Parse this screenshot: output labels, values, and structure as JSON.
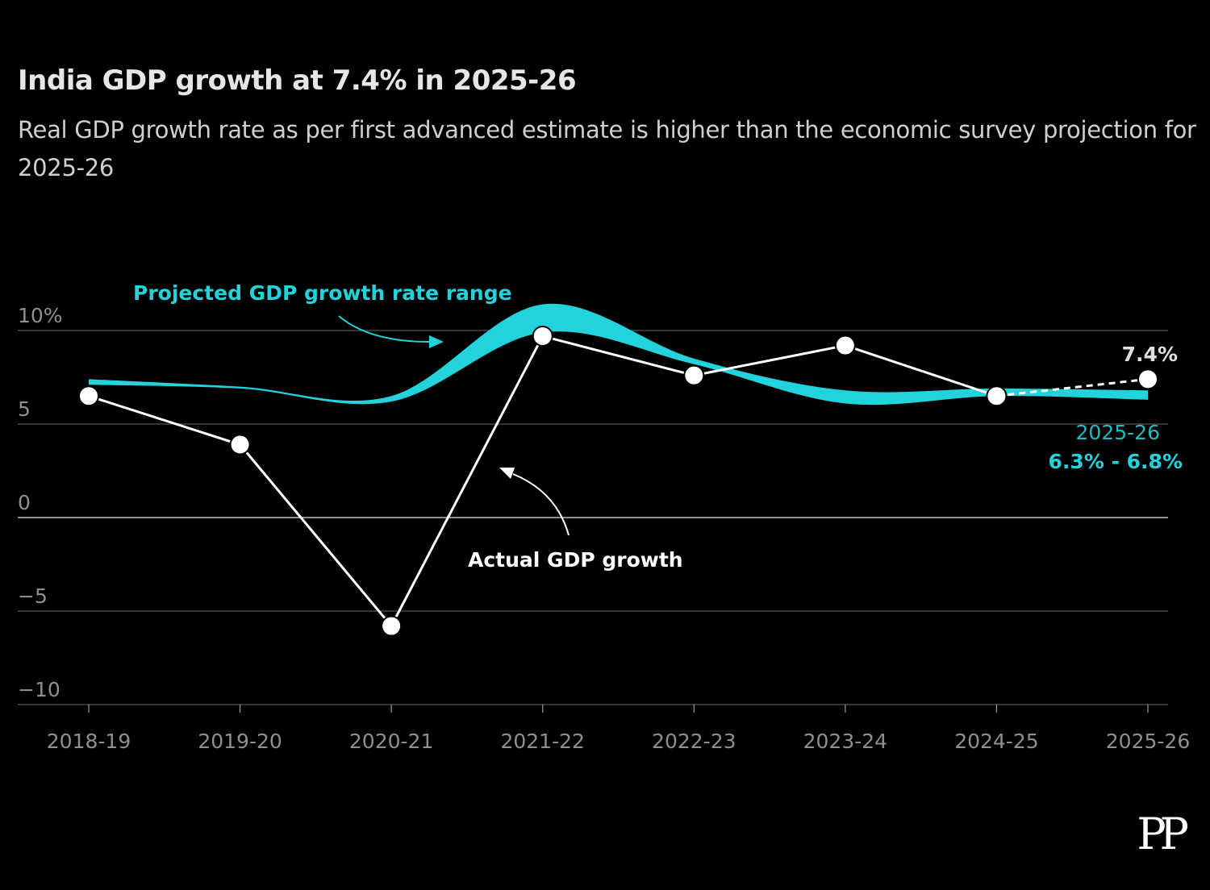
{
  "title": "India GDP growth at 7.4% in 2025-26",
  "subtitle": "Real GDP growth rate as per first advanced estimate is higher than the economic survey projection for 2025-26",
  "logo": "PP",
  "colors": {
    "background": "#000000",
    "actual": "#ffffff",
    "projected": "#22d3dc",
    "grid": "#555555",
    "axis_text": "#8f8f8f"
  },
  "chart_data": {
    "type": "line",
    "categories": [
      "2018-19",
      "2019-20",
      "2020-21",
      "2021-22",
      "2022-23",
      "2023-24",
      "2024-25",
      "2025-26"
    ],
    "y_ticks": [
      10,
      5,
      0,
      -5,
      -10
    ],
    "y_tick_labels": [
      "10%",
      "5",
      "0",
      "−5",
      "−10"
    ],
    "ylim": [
      -10,
      10
    ],
    "series": [
      {
        "name": "Actual GDP growth",
        "values": [
          6.5,
          3.9,
          -5.8,
          9.7,
          7.6,
          9.2,
          6.5,
          7.4
        ]
      },
      {
        "name": "Projected GDP growth rate range",
        "low": [
          7.1,
          6.9,
          6.2,
          9.9,
          8.2,
          6.1,
          6.5,
          6.3
        ],
        "high": [
          7.4,
          7.0,
          6.5,
          11.4,
          8.5,
          6.8,
          6.9,
          6.8
        ]
      }
    ],
    "annotations": {
      "projected_label": "Projected GDP growth rate range",
      "actual_label": "Actual GDP growth",
      "last_actual": "7.4%",
      "range_year": "2025-26",
      "range_value": "6.3% - 6.8%"
    }
  }
}
